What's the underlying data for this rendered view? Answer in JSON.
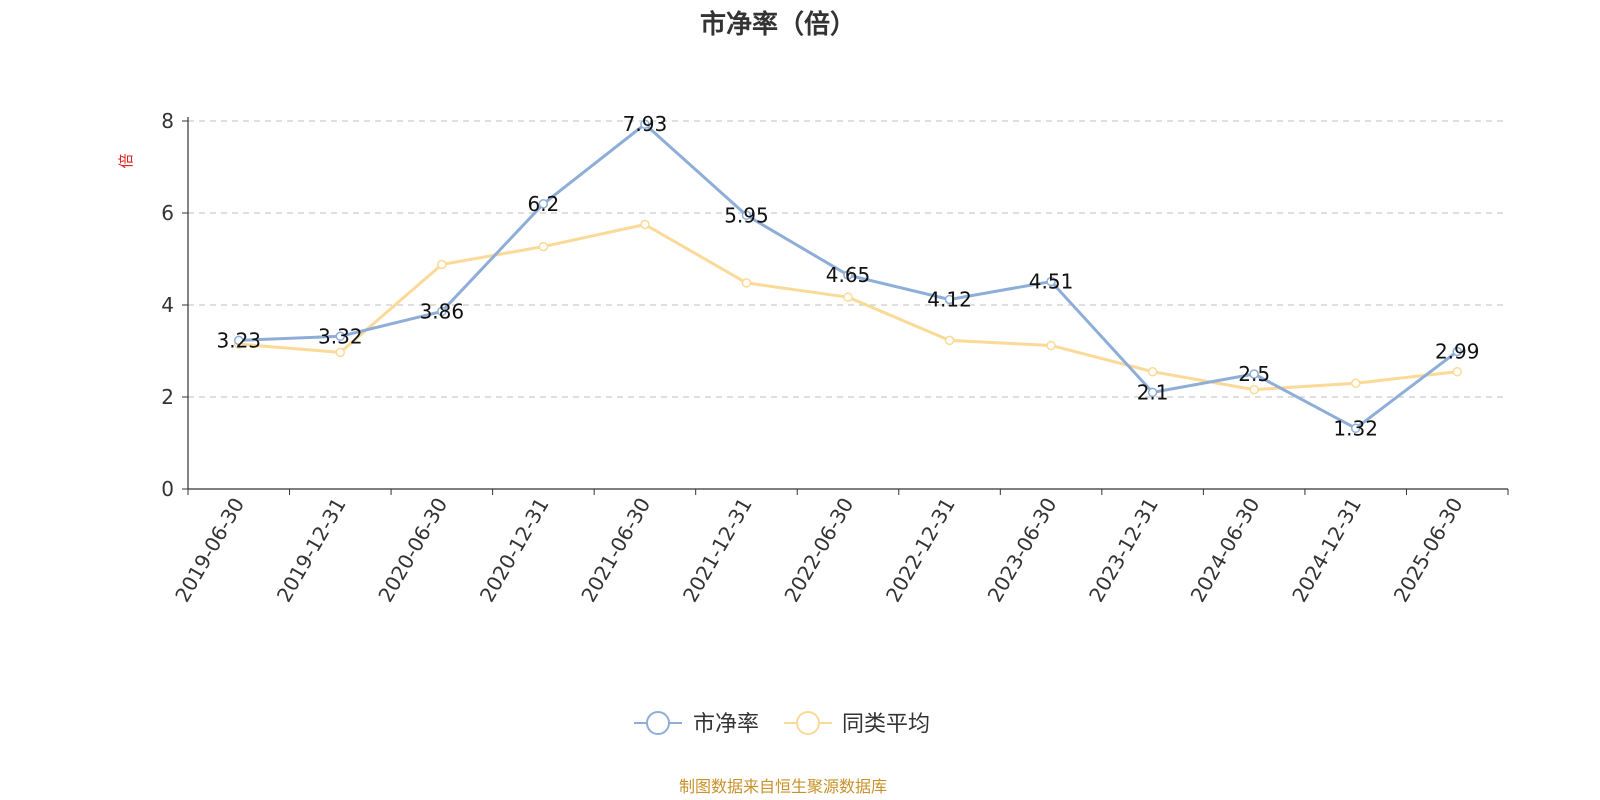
{
  "title": "市净率（倍）",
  "source": "制图数据来自恒生聚源数据库",
  "colors": {
    "series_main": "#8eaed8",
    "series_avg": "#fbd997",
    "unit_label": "#e0201c",
    "source": "#c8922a",
    "grid": "#cccccc",
    "axis": "#333333"
  },
  "chart_data": {
    "type": "line",
    "title": "市净率（倍）",
    "ylabel": "倍",
    "xlabel": "",
    "ylim": [
      0,
      8
    ],
    "yticks": [
      "0",
      "2",
      "4",
      "6",
      "8"
    ],
    "grid": "horizontal dashed",
    "legend_position": "bottom-center",
    "categories": [
      "2019-06-30",
      "2019-12-31",
      "2020-06-30",
      "2020-12-31",
      "2021-06-30",
      "2021-12-31",
      "2022-06-30",
      "2022-12-31",
      "2023-06-30",
      "2023-12-31",
      "2024-06-30",
      "2024-12-31",
      "2025-06-30"
    ],
    "series": [
      {
        "name": "市净率",
        "values": [
          3.23,
          3.32,
          3.86,
          6.2,
          7.93,
          5.95,
          4.65,
          4.12,
          4.51,
          2.1,
          2.5,
          1.32,
          2.99
        ],
        "labels": [
          "3.23",
          "3.32",
          "3.86",
          "6.2",
          "7.93",
          "5.95",
          "4.65",
          "4.12",
          "4.51",
          "2.1",
          "2.5",
          "1.32",
          "2.99"
        ]
      },
      {
        "name": "同类平均",
        "values": [
          3.15,
          2.97,
          4.88,
          5.27,
          5.75,
          4.48,
          4.17,
          3.23,
          3.12,
          2.55,
          2.16,
          2.3,
          2.55
        ]
      }
    ]
  }
}
